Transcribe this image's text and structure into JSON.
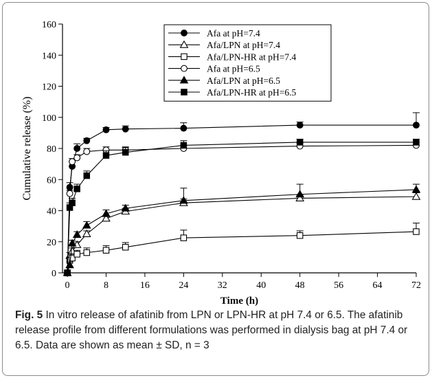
{
  "chart_data": {
    "type": "line",
    "xlabel": "Time (h)",
    "ylabel": "Cumulative release (%)",
    "xlim": [
      -1,
      72
    ],
    "ylim": [
      0,
      160
    ],
    "xticks": [
      0,
      8,
      16,
      24,
      32,
      40,
      48,
      56,
      64,
      72
    ],
    "yticks": [
      0,
      20,
      40,
      60,
      80,
      100,
      120,
      140,
      160
    ],
    "grid": false,
    "legend": "top-center",
    "x": [
      0,
      0.5,
      1,
      2,
      4,
      8,
      12,
      24,
      48,
      72
    ],
    "series": [
      {
        "name": "Afa at pH=7.4",
        "marker": "circle",
        "filled": true,
        "values": [
          0,
          55,
          68.5,
          80,
          85,
          92,
          92.5,
          93,
          95,
          95
        ],
        "err": [
          0,
          3,
          3,
          3,
          1.5,
          1.5,
          2,
          3.5,
          2,
          8
        ]
      },
      {
        "name": "Afa/LPN at pH=7.4",
        "marker": "triangle",
        "filled": false,
        "values": [
          0,
          11,
          14,
          18,
          25,
          35,
          39.5,
          45,
          48,
          49
        ],
        "err": [
          0,
          2,
          2,
          2,
          2,
          2,
          2,
          2.5,
          2,
          2.5
        ]
      },
      {
        "name": "Afa/LPN-HR at pH=7.4",
        "marker": "square",
        "filled": false,
        "values": [
          0,
          8,
          9.5,
          12,
          13,
          14.5,
          16.5,
          22.5,
          24,
          26.5
        ],
        "err": [
          0,
          2,
          2,
          2.5,
          3,
          3,
          3,
          5,
          3,
          5.5
        ]
      },
      {
        "name": "Afa at pH=6.5",
        "marker": "circle",
        "filled": false,
        "values": [
          0,
          51,
          71.5,
          74,
          78,
          79,
          79,
          80,
          81.5,
          82
        ],
        "err": [
          0,
          2,
          2,
          2,
          2,
          2,
          2,
          2,
          2,
          2
        ]
      },
      {
        "name": "Afa/LPN at pH=6.5",
        "marker": "triangle",
        "filled": true,
        "values": [
          0,
          5,
          19,
          24.5,
          30.5,
          38,
          41.5,
          46.5,
          50.5,
          53.5
        ],
        "err": [
          0,
          2,
          2,
          2,
          2.5,
          2.5,
          2,
          8,
          6.5,
          3.5
        ]
      },
      {
        "name": "Afa/LPN-HR at pH=6.5",
        "marker": "square",
        "filled": true,
        "values": [
          0,
          42,
          45,
          54,
          62.5,
          75.5,
          77.5,
          82,
          84,
          84
        ],
        "err": [
          0,
          3,
          3,
          3,
          3,
          3,
          3,
          3,
          2,
          2
        ]
      }
    ]
  },
  "caption": {
    "label": "Fig. 5",
    "text": " In vitro release of afatinib from LPN or LPN-HR at pH 7.4 or 6.5. The afatinib release profile from different formulations was performed in dialysis bag at pH 7.4 or 6.5. Data are shown as mean ± SD, n = 3"
  }
}
